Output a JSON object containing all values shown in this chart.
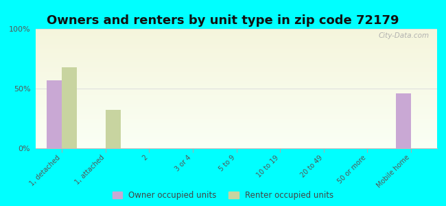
{
  "title": "Owners and renters by unit type in zip code 72179",
  "categories": [
    "1, detached",
    "1, attached",
    "2",
    "3 or 4",
    "5 to 9",
    "10 to 19",
    "20 to 49",
    "50 or more",
    "Mobile home"
  ],
  "owner_values": [
    57,
    0,
    0,
    0,
    0,
    0,
    0,
    0,
    46
  ],
  "renter_values": [
    68,
    32,
    0,
    0,
    0,
    0,
    0,
    0,
    0
  ],
  "owner_color": "#c9a8d4",
  "renter_color": "#c8d4a0",
  "background_color": "#00ffff",
  "yticks": [
    0,
    50,
    100
  ],
  "ytick_labels": [
    "0%",
    "50%",
    "100%"
  ],
  "ylim": [
    0,
    100
  ],
  "bar_width": 0.35,
  "watermark": "City-Data.com",
  "legend_labels": [
    "Owner occupied units",
    "Renter occupied units"
  ],
  "title_fontsize": 13,
  "tick_label_fontsize": 7,
  "ytick_fontsize": 8
}
